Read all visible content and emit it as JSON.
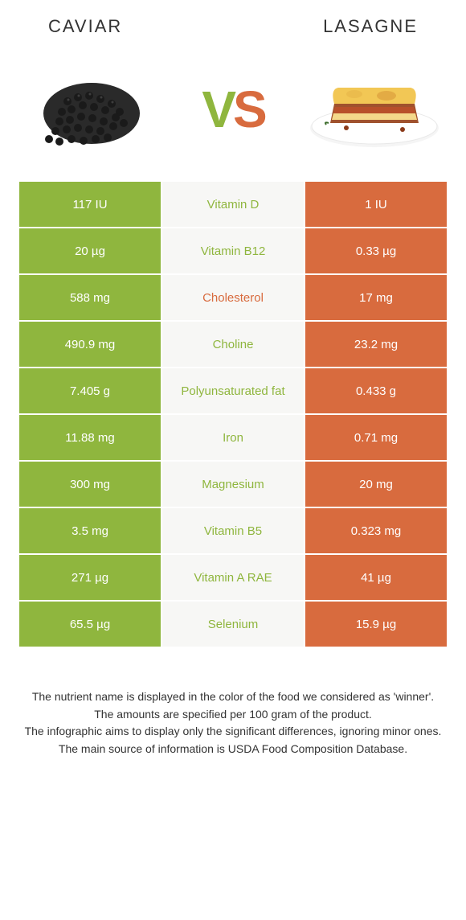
{
  "foods": {
    "left": {
      "name": "Caviar",
      "color": "#8fb63e"
    },
    "right": {
      "name": "Lasagne",
      "color": "#d86b3e"
    }
  },
  "vs": {
    "v": "V",
    "s": "S"
  },
  "rows": [
    {
      "left": "117 IU",
      "label": "Vitamin D",
      "winner": "green",
      "right": "1 IU"
    },
    {
      "left": "20 µg",
      "label": "Vitamin B12",
      "winner": "green",
      "right": "0.33 µg"
    },
    {
      "left": "588 mg",
      "label": "Cholesterol",
      "winner": "orange",
      "right": "17 mg"
    },
    {
      "left": "490.9 mg",
      "label": "Choline",
      "winner": "green",
      "right": "23.2 mg"
    },
    {
      "left": "7.405 g",
      "label": "Polyunsaturated fat",
      "winner": "green",
      "right": "0.433 g"
    },
    {
      "left": "11.88 mg",
      "label": "Iron",
      "winner": "green",
      "right": "0.71 mg"
    },
    {
      "left": "300 mg",
      "label": "Magnesium",
      "winner": "green",
      "right": "20 mg"
    },
    {
      "left": "3.5 mg",
      "label": "Vitamin B5",
      "winner": "green",
      "right": "0.323 mg"
    },
    {
      "left": "271 µg",
      "label": "Vitamin A RAE",
      "winner": "green",
      "right": "41 µg"
    },
    {
      "left": "65.5 µg",
      "label": "Selenium",
      "winner": "green",
      "right": "15.9 µg"
    }
  ],
  "footnotes": [
    "The nutrient name is displayed in the color of the food we considered as 'winner'.",
    "The amounts are specified per 100 gram of the product.",
    "The infographic aims to display only the significant differences, ignoring minor ones.",
    "The main source of information is USDA Food Composition Database."
  ]
}
